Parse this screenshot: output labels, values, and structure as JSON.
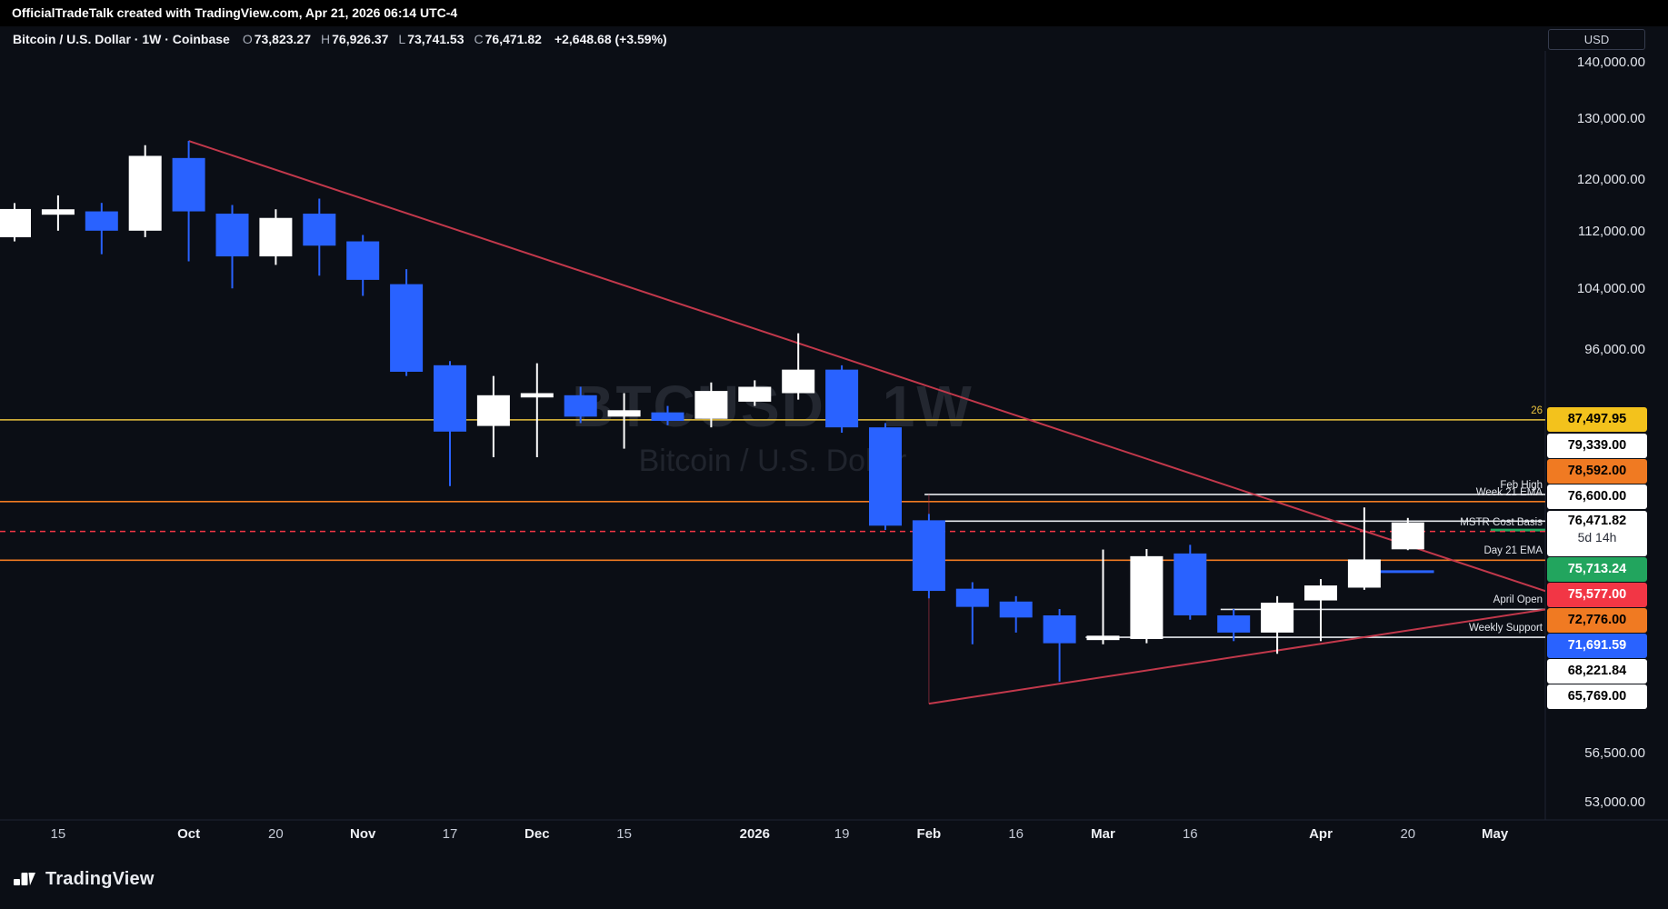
{
  "meta": {
    "attribution": "OfficialTradeTalk created with TradingView.com, Apr 21, 2026 06:14 UTC-4"
  },
  "header": {
    "symbol": "Bitcoin / U.S. Dollar · 1W · Coinbase",
    "ohlc": [
      [
        "O",
        "73,823.27"
      ],
      [
        "H",
        "76,926.37"
      ],
      [
        "L",
        "73,741.53"
      ],
      [
        "C",
        "76,471.82"
      ]
    ],
    "change": "+2,648.68 (+3.59%)",
    "currency_button": "USD"
  },
  "watermark": {
    "line1": "BTCUSD · 1W",
    "line2": "Bitcoin / U.S. Dollar"
  },
  "footer": {
    "brand": "TradingView"
  },
  "colors": {
    "bg": "#0b0e15",
    "topbar_bg": "#000000",
    "up": "#ffffff",
    "down": "#2962ff",
    "trend": "#cc3b4e",
    "separator": "#1f2433",
    "levels": {
      "yellow": "#e9c13d",
      "orange": "#f07a22",
      "red": "#f23645",
      "green": "#22a55e",
      "blue": "#2962ff",
      "white": "#e6e8ec"
    },
    "label_bg": {
      "yellow": "#f3c21c",
      "orange": "#f07a22",
      "red": "#f23645",
      "green": "#22a55e",
      "blue": "#2962ff",
      "white": "#ffffff"
    },
    "label_fg": {
      "yellow": "#000000",
      "orange": "#000000",
      "red": "#ffffff",
      "green": "#ffffff",
      "blue": "#ffffff",
      "white": "#000000"
    }
  },
  "chart_data": {
    "type": "candlestick",
    "title": "Bitcoin / U.S. Dollar",
    "symbol": "BTCUSD",
    "interval": "1W",
    "exchange": "Coinbase",
    "price_scale": "log",
    "currency": "USD",
    "visible_price_range": [
      51500,
      142500
    ],
    "up_color": "#ffffff",
    "down_color": "#2962ff",
    "current": {
      "price": 76471.82,
      "display": "76,471.82",
      "countdown": "5d 14h"
    },
    "y_ticks": [
      {
        "price": 140000,
        "text": "140,000.00"
      },
      {
        "price": 130000,
        "text": "130,000.00"
      },
      {
        "price": 120000,
        "text": "120,000.00"
      },
      {
        "price": 112000,
        "text": "112,000.00"
      },
      {
        "price": 104000,
        "text": "104,000.00"
      },
      {
        "price": 96000,
        "text": "96,000.00"
      },
      {
        "price": 56500,
        "text": "56,500.00"
      },
      {
        "price": 53000,
        "text": "53,000.00"
      }
    ],
    "x_labels": [
      {
        "i": 1,
        "t": "15"
      },
      {
        "i": 4,
        "t": "Oct",
        "m": 1
      },
      {
        "i": 6,
        "t": "20"
      },
      {
        "i": 8,
        "t": "Nov",
        "m": 1
      },
      {
        "i": 10,
        "t": "17"
      },
      {
        "i": 12,
        "t": "Dec",
        "m": 1
      },
      {
        "i": 14,
        "t": "15"
      },
      {
        "i": 17,
        "t": "2026",
        "m": 1
      },
      {
        "i": 19,
        "t": "19"
      },
      {
        "i": 21,
        "t": "Feb",
        "m": 1
      },
      {
        "i": 23,
        "t": "16"
      },
      {
        "i": 25,
        "t": "Mar",
        "m": 1
      },
      {
        "i": 27,
        "t": "16"
      },
      {
        "i": 30,
        "t": "Apr",
        "m": 1
      },
      {
        "i": 32,
        "t": "20"
      },
      {
        "i": 34,
        "t": "May",
        "m": 1
      }
    ],
    "candles": [
      [
        111200,
        116300,
        110600,
        115400
      ],
      [
        114540,
        117480,
        112160,
        115360
      ],
      [
        115040,
        116330,
        108750,
        112160
      ],
      [
        112160,
        125480,
        111220,
        123740
      ],
      [
        123390,
        126190,
        107740,
        115040
      ],
      [
        114700,
        116010,
        103980,
        108440
      ],
      [
        108440,
        115360,
        107240,
        114060
      ],
      [
        114700,
        116990,
        105740,
        109980
      ],
      [
        110600,
        111530,
        102960,
        105150
      ],
      [
        104560,
        106630,
        92680,
        93200
      ],
      [
        94000,
        94520,
        80210,
        86160
      ],
      [
        86800,
        92680,
        83310,
        90370
      ],
      [
        90110,
        94250,
        83310,
        90620
      ],
      [
        90370,
        91380,
        87130,
        87870
      ],
      [
        87870,
        90620,
        84250,
        88610
      ],
      [
        88360,
        89110,
        86880,
        87380
      ],
      [
        87620,
        91900,
        86640,
        90880
      ],
      [
        89610,
        92160,
        89110,
        91380
      ],
      [
        90620,
        98030,
        89860,
        93460
      ],
      [
        93460,
        94000,
        86040,
        86640
      ],
      [
        86640,
        87130,
        75720,
        76150
      ],
      [
        76690,
        77330,
        69220,
        69900
      ],
      [
        70100,
        70700,
        65170,
        68450
      ],
      [
        68930,
        69420,
        66180,
        67500
      ],
      [
        67690,
        68260,
        62050,
        65260
      ],
      [
        65530,
        73800,
        65170,
        65910
      ],
      [
        65620,
        73850,
        65260,
        73160
      ],
      [
        73420,
        74260,
        67310,
        67690
      ],
      [
        67690,
        68260,
        65440,
        66180
      ],
      [
        66180,
        69420,
        64360,
        68830
      ],
      [
        69030,
        70990,
        65440,
        70400
      ],
      [
        70200,
        77990,
        70000,
        72850
      ],
      [
        73823.27,
        76926.37,
        73741.53,
        76471.82
      ]
    ],
    "levels": [
      {
        "price": 87497.95,
        "axis_text": "87,497.95",
        "color": "yellow",
        "annotation": "26",
        "span": "full"
      },
      {
        "price": 79339.0,
        "axis_text": "79,339.00",
        "color": "white",
        "annotation": "Feb High",
        "from_i": 20.9
      },
      {
        "price": 78592.0,
        "axis_text": "78,592.00",
        "color": "orange",
        "annotation": "Week 21 EMA",
        "span": "full"
      },
      {
        "price": 76600.0,
        "axis_text": "76,600.00",
        "color": "white",
        "from_i": 20.9
      },
      {
        "price": 75713.24,
        "axis_text": "75,713.24",
        "color": "green",
        "from_i": 33.9,
        "to_i": 35.2
      },
      {
        "price": 75577.0,
        "axis_text": "75,577.00",
        "color": "red",
        "annotation": "MSTR Cost Basis",
        "span": "full",
        "dash": true
      },
      {
        "price": 72776.0,
        "axis_text": "72,776.00",
        "color": "orange",
        "annotation": "Day 21 EMA",
        "span": "full"
      },
      {
        "price": 71691.59,
        "axis_text": "71,691.59",
        "color": "blue",
        "from_i": 31.1,
        "to_i": 32.6
      },
      {
        "price": 68221.84,
        "axis_text": "68,221.84",
        "color": "white",
        "annotation": "April Open",
        "from_i": 27.7
      },
      {
        "price": 65769.0,
        "axis_text": "65,769.00",
        "color": "white",
        "annotation": "Weekly Support",
        "from_i": 24.6
      }
    ],
    "trendlines": [
      {
        "i1": 4,
        "p1": 126190,
        "i2": 35.2,
        "p2": 69830
      },
      {
        "i1": 21,
        "p1": 60280,
        "i2": 35.2,
        "p2": 68240
      },
      {
        "i1": 21,
        "p1": 79339,
        "i2": 21,
        "p2": 60280,
        "thin": true
      }
    ]
  }
}
